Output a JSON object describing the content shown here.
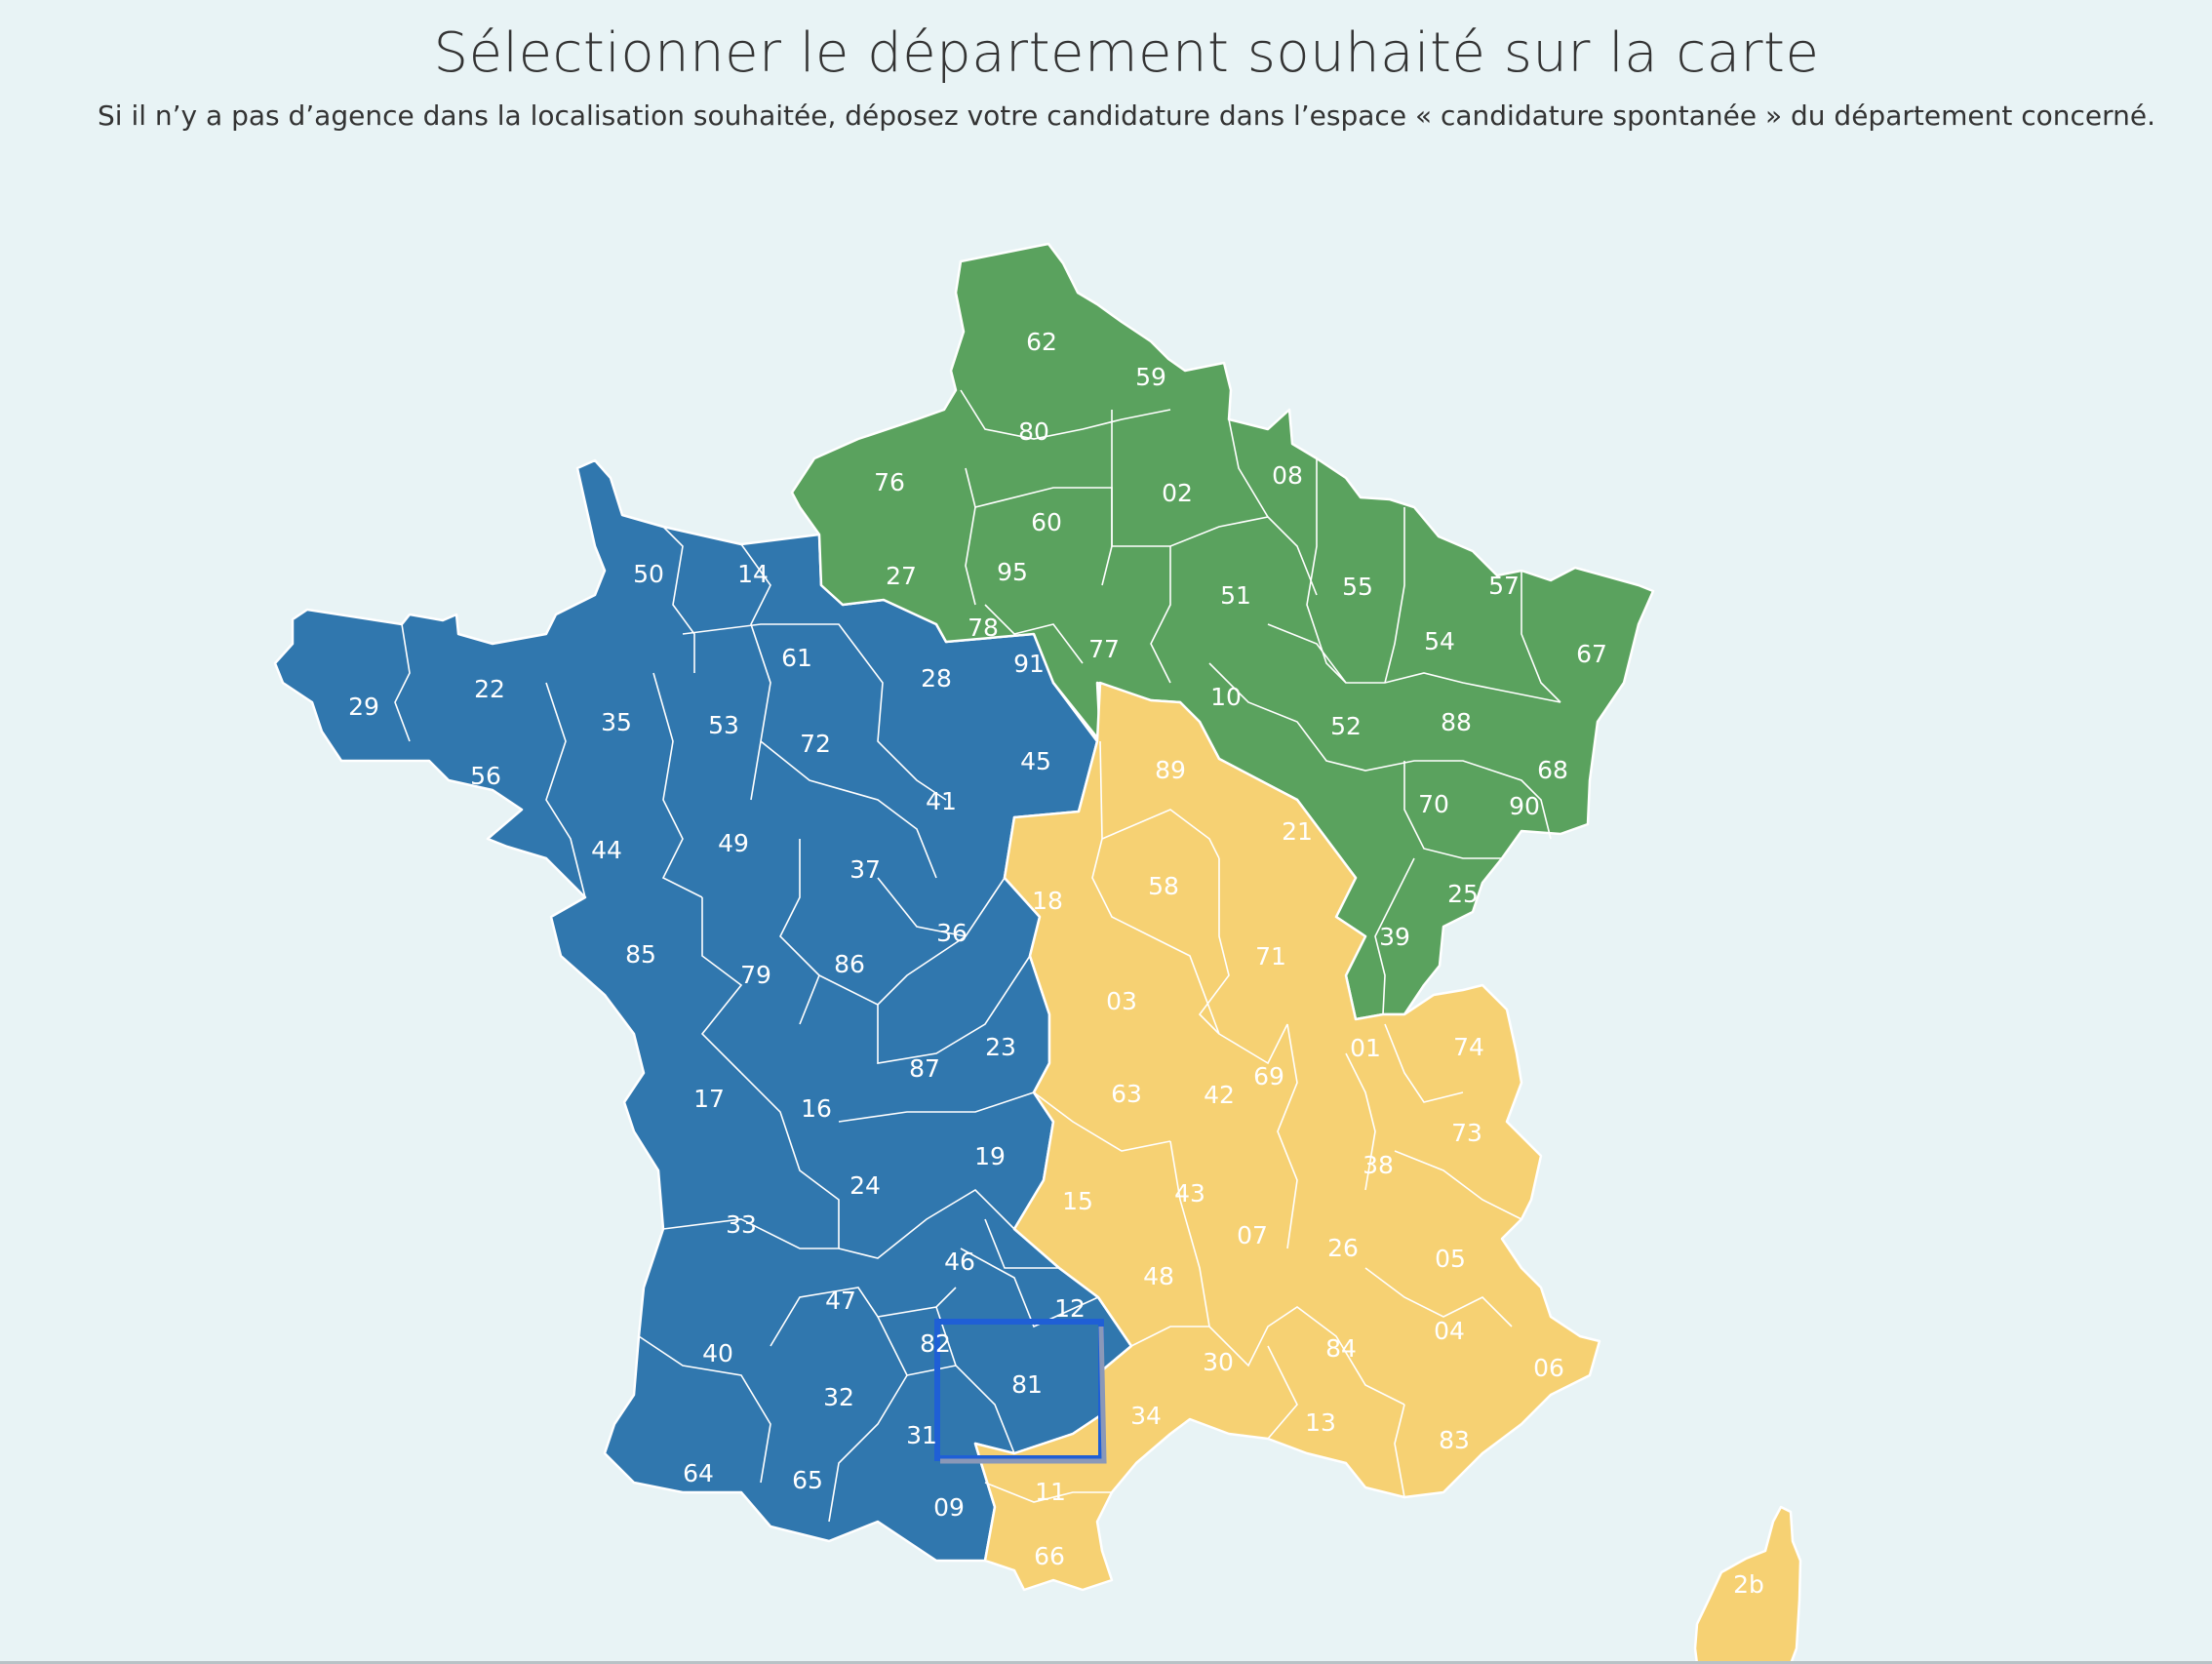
{
  "header": {
    "title": "Sélectionner le département souhaité sur la carte",
    "subtitle": "Si il n’y a pas d’agence dans la localisation souhaitée, déposez votre candidature dans l’espace « candidature spontanée » du département concerné."
  },
  "colors": {
    "background": "#e8f3f5",
    "west_region": "#3077ae",
    "north_east_region": "#5aa25e",
    "south_east_region": "#f6d173",
    "border": "#ffffff",
    "selection": "#1f5fd6"
  },
  "selected_department": "81",
  "departments": {
    "west": [
      "50",
      "14",
      "61",
      "29",
      "22",
      "35",
      "56",
      "53",
      "72",
      "28",
      "45",
      "41",
      "44",
      "49",
      "37",
      "85",
      "79",
      "86",
      "36",
      "17",
      "16",
      "87",
      "23",
      "19",
      "24",
      "33",
      "46",
      "47",
      "82",
      "12",
      "81",
      "40",
      "32",
      "31",
      "64",
      "65",
      "09"
    ],
    "north_east": [
      "62",
      "59",
      "80",
      "76",
      "60",
      "02",
      "08",
      "27",
      "95",
      "78",
      "91",
      "77",
      "51",
      "55",
      "57",
      "54",
      "67",
      "10",
      "52",
      "88",
      "68",
      "70",
      "90",
      "25",
      "39"
    ],
    "south_east": [
      "89",
      "21",
      "18",
      "58",
      "71",
      "03",
      "01",
      "74",
      "69",
      "42",
      "63",
      "73",
      "38",
      "15",
      "43",
      "07",
      "26",
      "05",
      "48",
      "04",
      "30",
      "84",
      "06",
      "34",
      "13",
      "83",
      "11",
      "66",
      "2b"
    ]
  }
}
